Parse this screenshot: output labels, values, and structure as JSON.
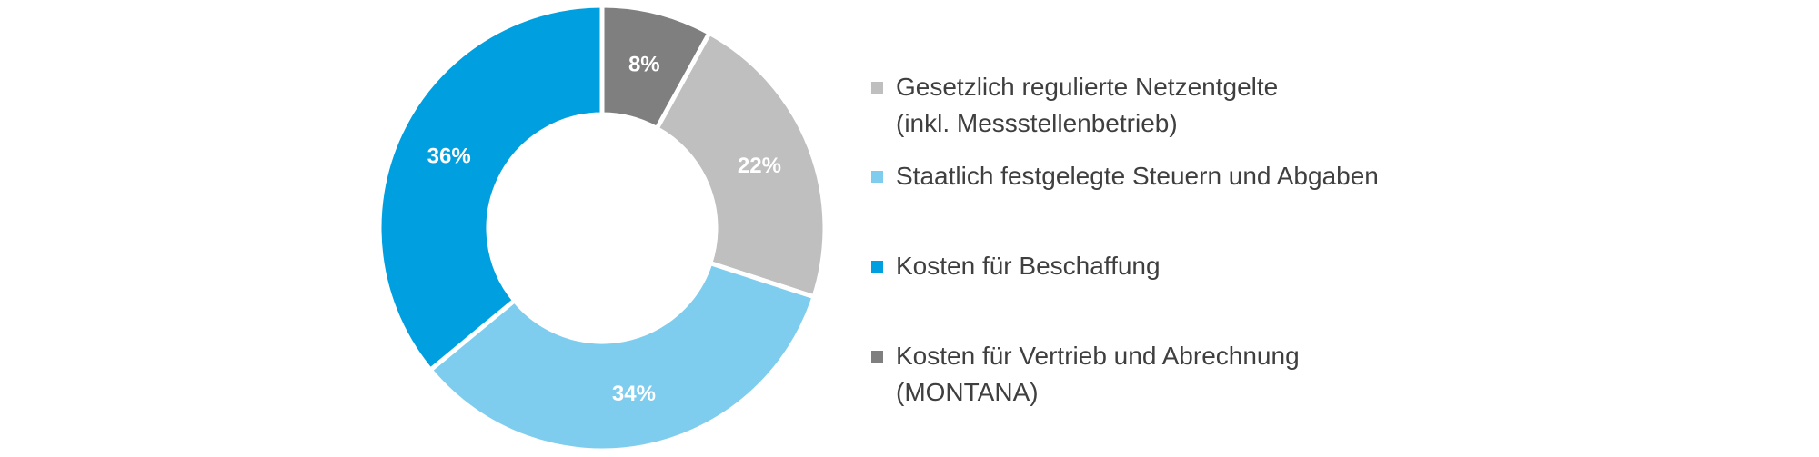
{
  "chart_data": {
    "type": "pie",
    "variant": "donut",
    "title": "",
    "slices": [
      {
        "label": "Kosten für Vertrieb und Abrechnung (MONTANA)",
        "value": 8,
        "display": "8%",
        "color": "#7f7f7f"
      },
      {
        "label": "Gesetzlich regulierte Netzentgelte (inkl. Messstellenbetrieb)",
        "value": 22,
        "display": "22%",
        "color": "#bfbfbf"
      },
      {
        "label": "Staatlich festgelegte Steuern und Abgaben",
        "value": 34,
        "display": "34%",
        "color": "#7fcdee"
      },
      {
        "label": "Kosten für Beschaffung",
        "value": 36,
        "display": "36%",
        "color": "#009fdf"
      }
    ],
    "start_angle_deg": 0,
    "direction": "clockwise",
    "legend_position": "right"
  },
  "legend": {
    "items": [
      {
        "lines": [
          "Gesetzlich regulierte Netzentgelte",
          "(inkl. Messstellenbetrieb)"
        ],
        "color": "#bfbfbf"
      },
      {
        "lines": [
          "Staatlich festgelegte Steuern und Abgaben"
        ],
        "color": "#7fcdee"
      },
      {
        "lines": [
          "Kosten für Beschaffung"
        ],
        "color": "#009fdf"
      },
      {
        "lines": [
          "Kosten für Vertrieb und Abrechnung",
          "(MONTANA)"
        ],
        "color": "#7f7f7f"
      }
    ]
  }
}
